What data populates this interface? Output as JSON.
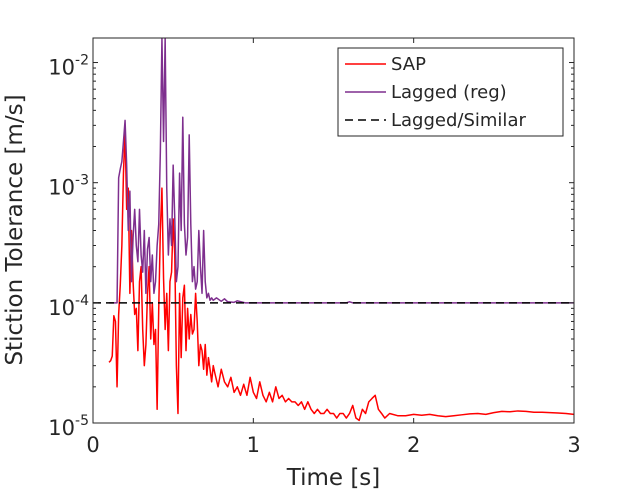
{
  "chart_data": {
    "type": "line",
    "title": "",
    "xlabel": "Time [s]",
    "ylabel": "Stiction Tolerance [m/s]",
    "xlim": [
      0,
      3
    ],
    "ylim": [
      1e-05,
      0.016
    ],
    "yscale": "log",
    "grid": false,
    "legend_position": "top-right",
    "x_ticks": [
      {
        "value": 0,
        "label": "0"
      },
      {
        "value": 1,
        "label": "1"
      },
      {
        "value": 2,
        "label": "2"
      },
      {
        "value": 3,
        "label": "3"
      }
    ],
    "y_ticks": [
      {
        "value": 1e-05,
        "base": "10",
        "exp": "-5"
      },
      {
        "value": 0.0001,
        "base": "10",
        "exp": "-4"
      },
      {
        "value": 0.001,
        "base": "10",
        "exp": "-3"
      },
      {
        "value": 0.01,
        "base": "10",
        "exp": "-2"
      }
    ],
    "series": [
      {
        "name": "SAP",
        "color": "#ff0000",
        "dash": "solid",
        "points": [
          [
            0.1,
            3.2e-05
          ],
          [
            0.11,
            3.3e-05
          ],
          [
            0.12,
            3.6e-05
          ],
          [
            0.13,
            7.8e-05
          ],
          [
            0.14,
            7e-05
          ],
          [
            0.15,
            2e-05
          ],
          [
            0.16,
            8e-05
          ],
          [
            0.17,
            0.00014
          ],
          [
            0.18,
            0.0003
          ],
          [
            0.19,
            0.0012
          ],
          [
            0.2,
            0.0027
          ],
          [
            0.21,
            0.0006
          ],
          [
            0.22,
            0.0009
          ],
          [
            0.23,
            0.00012
          ],
          [
            0.24,
            0.0004
          ],
          [
            0.25,
            0.00015
          ],
          [
            0.26,
            8e-05
          ],
          [
            0.27,
            9e-05
          ],
          [
            0.28,
            4e-05
          ],
          [
            0.29,
            0.00015
          ],
          [
            0.3,
            0.0002
          ],
          [
            0.31,
            6e-05
          ],
          [
            0.32,
            3e-05
          ],
          [
            0.33,
            4.5e-05
          ],
          [
            0.34,
            0.00012
          ],
          [
            0.35,
            0.0002
          ],
          [
            0.36,
            5e-05
          ],
          [
            0.37,
            0.0001
          ],
          [
            0.38,
            4.5e-05
          ],
          [
            0.39,
            6e-05
          ],
          [
            0.4,
            1.3e-05
          ],
          [
            0.41,
            9e-05
          ],
          [
            0.42,
            0.0004
          ],
          [
            0.43,
            0.0009
          ],
          [
            0.44,
            0.00016
          ],
          [
            0.45,
            6e-05
          ],
          [
            0.46,
            0.00012
          ],
          [
            0.47,
            4e-05
          ],
          [
            0.48,
            0.00015
          ],
          [
            0.49,
            0.00018
          ],
          [
            0.5,
            0.0005
          ],
          [
            0.51,
            0.00025
          ],
          [
            0.52,
            3e-05
          ],
          [
            0.53,
            1.2e-05
          ],
          [
            0.54,
            0.00012
          ],
          [
            0.55,
            3.5e-05
          ],
          [
            0.56,
            0.00011
          ],
          [
            0.57,
            0.00014
          ],
          [
            0.58,
            4e-05
          ],
          [
            0.59,
            9e-05
          ],
          [
            0.6,
            5e-05
          ],
          [
            0.61,
            8e-05
          ],
          [
            0.62,
            5.5e-05
          ],
          [
            0.63,
            6e-05
          ],
          [
            0.64,
            0.00012
          ],
          [
            0.65,
            7e-05
          ],
          [
            0.66,
            3e-05
          ],
          [
            0.67,
            4.5e-05
          ],
          [
            0.68,
            4e-05
          ],
          [
            0.69,
            2.8e-05
          ],
          [
            0.7,
            4.5e-05
          ],
          [
            0.71,
            2.5e-05
          ],
          [
            0.72,
            3.5e-05
          ],
          [
            0.73,
            2.8e-05
          ],
          [
            0.74,
            2.2e-05
          ],
          [
            0.75,
            3e-05
          ],
          [
            0.76,
            2.6e-05
          ],
          [
            0.78,
            2e-05
          ],
          [
            0.8,
            2.8e-05
          ],
          [
            0.82,
            2.2e-05
          ],
          [
            0.84,
            2e-05
          ],
          [
            0.86,
            2.4e-05
          ],
          [
            0.88,
            1.8e-05
          ],
          [
            0.9,
            2e-05
          ],
          [
            0.92,
            1.7e-05
          ],
          [
            0.94,
            2.1e-05
          ],
          [
            0.96,
            1.7e-05
          ],
          [
            0.98,
            2.4e-05
          ],
          [
            1.0,
            1.8e-05
          ],
          [
            1.02,
            1.6e-05
          ],
          [
            1.04,
            2.2e-05
          ],
          [
            1.06,
            1.7e-05
          ],
          [
            1.08,
            1.5e-05
          ],
          [
            1.1,
            1.8e-05
          ],
          [
            1.12,
            1.5e-05
          ],
          [
            1.14,
            2e-05
          ],
          [
            1.16,
            1.6e-05
          ],
          [
            1.18,
            1.7e-05
          ],
          [
            1.2,
            1.5e-05
          ],
          [
            1.22,
            1.6e-05
          ],
          [
            1.24,
            1.5e-05
          ],
          [
            1.26,
            1.5e-05
          ],
          [
            1.28,
            1.4e-05
          ],
          [
            1.3,
            1.5e-05
          ],
          [
            1.32,
            1.3e-05
          ],
          [
            1.34,
            1.5e-05
          ],
          [
            1.36,
            1.3e-05
          ],
          [
            1.38,
            1.2e-05
          ],
          [
            1.4,
            1.3e-05
          ],
          [
            1.42,
            1.2e-05
          ],
          [
            1.44,
            1.2e-05
          ],
          [
            1.46,
            1.3e-05
          ],
          [
            1.48,
            1.2e-05
          ],
          [
            1.5,
            1.2e-05
          ],
          [
            1.52,
            1.1e-05
          ],
          [
            1.54,
            1.2e-05
          ],
          [
            1.56,
            1.2e-05
          ],
          [
            1.58,
            1.1e-05
          ],
          [
            1.6,
            1.2e-05
          ],
          [
            1.62,
            1.4e-05
          ],
          [
            1.64,
            1.1e-05
          ],
          [
            1.66,
            1.05e-05
          ],
          [
            1.68,
            1.3e-05
          ],
          [
            1.7,
            1.2e-05
          ],
          [
            1.72,
            1.5e-05
          ],
          [
            1.74,
            1.6e-05
          ],
          [
            1.76,
            1.7e-05
          ],
          [
            1.78,
            1.3e-05
          ],
          [
            1.8,
            1.2e-05
          ],
          [
            1.82,
            1.1e-05
          ],
          [
            1.85,
            1.2e-05
          ],
          [
            1.9,
            1.15e-05
          ],
          [
            1.95,
            1.15e-05
          ],
          [
            2.0,
            1.18e-05
          ],
          [
            2.05,
            1.16e-05
          ],
          [
            2.1,
            1.18e-05
          ],
          [
            2.15,
            1.15e-05
          ],
          [
            2.2,
            1.13e-05
          ],
          [
            2.25,
            1.15e-05
          ],
          [
            2.3,
            1.17e-05
          ],
          [
            2.35,
            1.19e-05
          ],
          [
            2.4,
            1.2e-05
          ],
          [
            2.45,
            1.18e-05
          ],
          [
            2.5,
            1.22e-05
          ],
          [
            2.55,
            1.25e-05
          ],
          [
            2.6,
            1.24e-05
          ],
          [
            2.65,
            1.26e-05
          ],
          [
            2.7,
            1.25e-05
          ],
          [
            2.75,
            1.23e-05
          ],
          [
            2.8,
            1.23e-05
          ],
          [
            2.85,
            1.22e-05
          ],
          [
            2.9,
            1.21e-05
          ],
          [
            2.95,
            1.2e-05
          ],
          [
            3.0,
            1.18e-05
          ]
        ]
      },
      {
        "name": "Lagged (reg)",
        "color": "#7e2f8e",
        "dash": "solid",
        "points": [
          [
            0.1,
            0.0001
          ],
          [
            0.14,
            0.0001
          ],
          [
            0.15,
            0.0001
          ],
          [
            0.16,
            0.0011
          ],
          [
            0.17,
            0.0013
          ],
          [
            0.18,
            0.0015
          ],
          [
            0.19,
            0.0022
          ],
          [
            0.2,
            0.0033
          ],
          [
            0.21,
            0.0014
          ],
          [
            0.22,
            0.0004
          ],
          [
            0.23,
            0.00085
          ],
          [
            0.24,
            0.00015
          ],
          [
            0.25,
            0.00035
          ],
          [
            0.26,
            0.0006
          ],
          [
            0.27,
            0.0003
          ],
          [
            0.28,
            0.00022
          ],
          [
            0.29,
            0.0006
          ],
          [
            0.3,
            0.00025
          ],
          [
            0.31,
            0.00018
          ],
          [
            0.32,
            0.0004
          ],
          [
            0.33,
            0.00012
          ],
          [
            0.34,
            0.00028
          ],
          [
            0.35,
            0.00035
          ],
          [
            0.36,
            0.00015
          ],
          [
            0.37,
            0.00025
          ],
          [
            0.38,
            0.00012
          ],
          [
            0.39,
            0.00015
          ],
          [
            0.4,
            0.0003
          ],
          [
            0.41,
            0.00045
          ],
          [
            0.42,
            0.0018
          ],
          [
            0.43,
            0.016
          ],
          [
            0.44,
            0.0022
          ],
          [
            0.45,
            0.016
          ],
          [
            0.46,
            0.0009
          ],
          [
            0.47,
            0.00025
          ],
          [
            0.48,
            0.0005
          ],
          [
            0.49,
            0.0003
          ],
          [
            0.5,
            0.0014
          ],
          [
            0.51,
            0.0005
          ],
          [
            0.52,
            0.00015
          ],
          [
            0.53,
            0.0002
          ],
          [
            0.54,
            0.0012
          ],
          [
            0.55,
            0.0004
          ],
          [
            0.56,
            0.0035
          ],
          [
            0.57,
            0.00045
          ],
          [
            0.58,
            0.00025
          ],
          [
            0.59,
            0.00035
          ],
          [
            0.6,
            0.0025
          ],
          [
            0.61,
            0.00045
          ],
          [
            0.62,
            0.00015
          ],
          [
            0.63,
            0.0002
          ],
          [
            0.64,
            0.00013
          ],
          [
            0.65,
            0.00015
          ],
          [
            0.66,
            0.0004
          ],
          [
            0.67,
            0.0002
          ],
          [
            0.68,
            0.00012
          ],
          [
            0.69,
            0.0004
          ],
          [
            0.7,
            0.00015
          ],
          [
            0.71,
            0.00011
          ],
          [
            0.72,
            0.00012
          ],
          [
            0.73,
            0.000105
          ],
          [
            0.74,
            0.00011
          ],
          [
            0.75,
            0.000105
          ],
          [
            0.77,
            0.00011
          ],
          [
            0.8,
            0.000103
          ],
          [
            0.82,
            0.000108
          ],
          [
            0.84,
            0.000102
          ],
          [
            0.88,
            0.000101
          ],
          [
            0.9,
            0.000104
          ],
          [
            0.95,
            0.0001
          ],
          [
            1.0,
            0.0001
          ],
          [
            1.2,
            0.0001
          ],
          [
            1.4,
            0.0001
          ],
          [
            1.58,
            0.0001
          ],
          [
            1.6,
            0.000102
          ],
          [
            1.62,
            0.0001
          ],
          [
            2.0,
            0.0001
          ],
          [
            2.5,
            0.0001
          ],
          [
            3.0,
            0.0001
          ]
        ]
      },
      {
        "name": "Lagged/Similar",
        "color": "#000000",
        "dash": "dashed",
        "points": [
          [
            0.0,
            0.0001
          ],
          [
            3.0,
            0.0001
          ]
        ]
      }
    ]
  }
}
